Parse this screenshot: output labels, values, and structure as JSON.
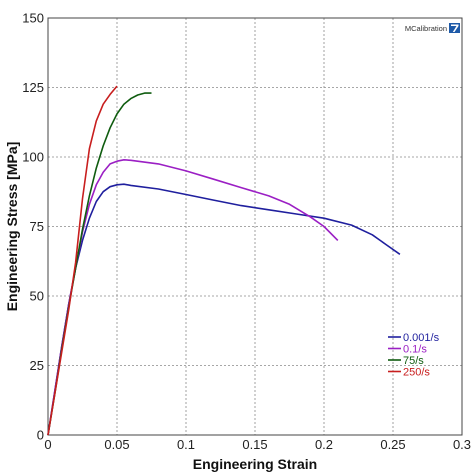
{
  "chart_data": {
    "type": "line",
    "title": "",
    "xlabel": "Engineering Strain",
    "ylabel": "Engineering Stress [MPa]",
    "xlim": [
      0,
      0.3
    ],
    "ylim": [
      0,
      150
    ],
    "x_ticks": [
      0,
      0.05,
      0.1,
      0.15,
      0.2,
      0.25,
      0.3
    ],
    "x_tick_labels": [
      "0",
      "0.05",
      "0.1",
      "0.15",
      "0.2",
      "0.25",
      "0.3"
    ],
    "y_ticks": [
      0,
      25,
      50,
      75,
      100,
      125,
      150
    ],
    "y_tick_labels": [
      "0",
      "25",
      "50",
      "75",
      "100",
      "125",
      "150"
    ],
    "grid": true,
    "legend_position": "bottom-right",
    "series": [
      {
        "name": "0.001/s",
        "color": "#1f1f9e",
        "x": [
          0,
          0.005,
          0.01,
          0.015,
          0.02,
          0.025,
          0.03,
          0.035,
          0.04,
          0.045,
          0.05,
          0.055,
          0.06,
          0.08,
          0.1,
          0.12,
          0.14,
          0.16,
          0.18,
          0.2,
          0.22,
          0.235,
          0.245,
          0.255
        ],
        "y": [
          0,
          16,
          32,
          47,
          60,
          70,
          78,
          84,
          87.5,
          89.3,
          90,
          90.2,
          89.8,
          88.5,
          86.5,
          84.5,
          82.5,
          81,
          79.5,
          78,
          75.5,
          72,
          68.5,
          65
        ]
      },
      {
        "name": "0.1/s",
        "color": "#9b1fc4",
        "x": [
          0,
          0.005,
          0.01,
          0.015,
          0.02,
          0.025,
          0.03,
          0.035,
          0.04,
          0.045,
          0.05,
          0.055,
          0.06,
          0.08,
          0.1,
          0.12,
          0.14,
          0.16,
          0.175,
          0.19,
          0.2,
          0.21
        ],
        "y": [
          0,
          16,
          32,
          47,
          60,
          73,
          83,
          90,
          94.5,
          97.5,
          98.5,
          99,
          98.8,
          97.5,
          95,
          92,
          89,
          86,
          83,
          78.5,
          75,
          70
        ]
      },
      {
        "name": "75/s",
        "color": "#0f5c0f",
        "x": [
          0,
          0.005,
          0.01,
          0.015,
          0.02,
          0.025,
          0.03,
          0.035,
          0.04,
          0.045,
          0.05,
          0.055,
          0.06,
          0.065,
          0.07,
          0.075
        ],
        "y": [
          0,
          15,
          31,
          46,
          60,
          74,
          86,
          96,
          104,
          110.5,
          115.5,
          119,
          121,
          122.3,
          123,
          123
        ]
      },
      {
        "name": "250/s",
        "color": "#c81e1e",
        "x": [
          0,
          0.005,
          0.01,
          0.015,
          0.02,
          0.025,
          0.03,
          0.035,
          0.04,
          0.045,
          0.05
        ],
        "y": [
          0,
          15,
          30,
          45,
          62,
          85,
          103,
          113,
          119,
          122.5,
          125.5
        ]
      }
    ]
  },
  "watermark": {
    "text": "MCalibration",
    "color": "#1e5aa8"
  }
}
